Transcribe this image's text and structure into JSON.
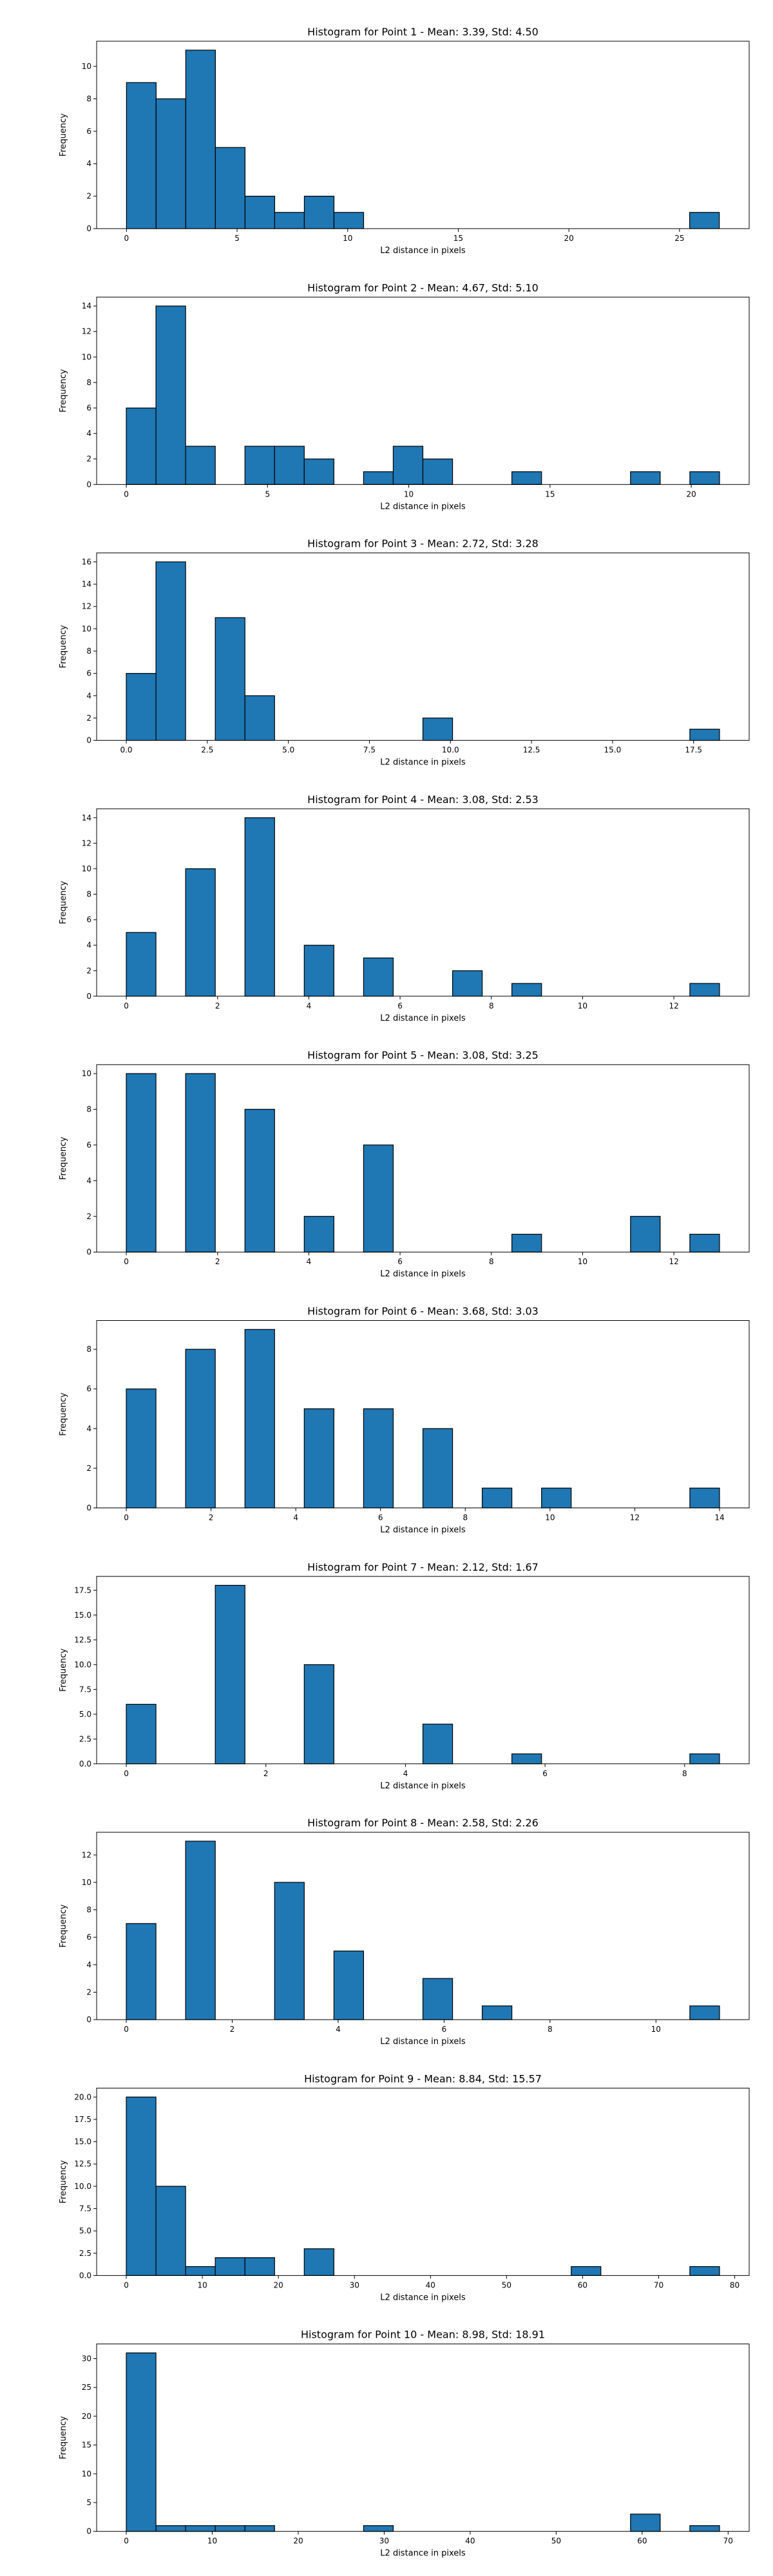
{
  "figure": {
    "background": "#ffffff",
    "bar_color": "#1f77b4",
    "edge_color": "#000000"
  },
  "chart_data": [
    {
      "type": "bar",
      "title": "Histogram for Point 1 - Mean: 3.39, Std: 4.50",
      "xlabel": "L2 distance in pixels",
      "ylabel": "Frequency",
      "xlim": [
        -1.35,
        28.15
      ],
      "ylim": [
        0,
        11.55
      ],
      "xticks": [
        0,
        5,
        10,
        15,
        20,
        25
      ],
      "yticks": [
        0,
        2,
        4,
        6,
        8,
        10
      ],
      "bins": [
        [
          0,
          1.34,
          9
        ],
        [
          1.34,
          2.68,
          8
        ],
        [
          2.68,
          4.02,
          11
        ],
        [
          4.02,
          5.36,
          5
        ],
        [
          5.36,
          6.7,
          2
        ],
        [
          6.7,
          8.04,
          1
        ],
        [
          8.04,
          9.38,
          2
        ],
        [
          9.38,
          10.72,
          1
        ],
        [
          25.46,
          26.8,
          1
        ]
      ]
    },
    {
      "type": "bar",
      "title": "Histogram for Point 2 - Mean: 4.67, Std: 5.10",
      "xlabel": "L2 distance in pixels",
      "ylabel": "Frequency",
      "xlim": [
        -1.05,
        22.05
      ],
      "ylim": [
        0,
        14.7
      ],
      "xticks": [
        0,
        5,
        10,
        15,
        20
      ],
      "yticks": [
        0,
        2,
        4,
        6,
        8,
        10,
        12,
        14
      ],
      "bins": [
        [
          0,
          1.05,
          6
        ],
        [
          1.05,
          2.1,
          14
        ],
        [
          2.1,
          3.15,
          3
        ],
        [
          4.2,
          5.25,
          3
        ],
        [
          5.25,
          6.3,
          3
        ],
        [
          6.3,
          7.35,
          2
        ],
        [
          8.4,
          9.45,
          1
        ],
        [
          9.45,
          10.5,
          3
        ],
        [
          10.5,
          11.55,
          2
        ],
        [
          13.65,
          14.7,
          1
        ],
        [
          17.85,
          18.9,
          1
        ],
        [
          19.95,
          21.0,
          1
        ]
      ]
    },
    {
      "type": "bar",
      "title": "Histogram for Point 3 - Mean: 2.72, Std: 3.28",
      "xlabel": "L2 distance in pixels",
      "ylabel": "Frequency",
      "xlim": [
        -0.915,
        19.215
      ],
      "ylim": [
        0,
        16.8
      ],
      "xticks": [
        0.0,
        2.5,
        5.0,
        7.5,
        10.0,
        12.5,
        15.0,
        17.5
      ],
      "yticks": [
        0,
        2,
        4,
        6,
        8,
        10,
        12,
        14,
        16
      ],
      "bins": [
        [
          0,
          0.915,
          6
        ],
        [
          0.915,
          1.83,
          16
        ],
        [
          2.745,
          3.66,
          11
        ],
        [
          3.66,
          4.575,
          4
        ],
        [
          9.15,
          10.065,
          2
        ],
        [
          17.385,
          18.3,
          1
        ]
      ]
    },
    {
      "type": "bar",
      "title": "Histogram for Point 4 - Mean: 3.08, Std: 2.53",
      "xlabel": "L2 distance in pixels",
      "ylabel": "Frequency",
      "xlim": [
        -0.65,
        13.65
      ],
      "ylim": [
        0,
        14.7
      ],
      "xticks": [
        0,
        2,
        4,
        6,
        8,
        10,
        12
      ],
      "yticks": [
        0,
        2,
        4,
        6,
        8,
        10,
        12,
        14
      ],
      "bins": [
        [
          0,
          0.65,
          5
        ],
        [
          1.3,
          1.95,
          10
        ],
        [
          2.6,
          3.25,
          14
        ],
        [
          3.9,
          4.55,
          4
        ],
        [
          5.2,
          5.85,
          3
        ],
        [
          7.15,
          7.8,
          2
        ],
        [
          8.45,
          9.1,
          1
        ],
        [
          12.35,
          13.0,
          1
        ]
      ]
    },
    {
      "type": "bar",
      "title": "Histogram for Point 5 - Mean: 3.08, Std: 3.25",
      "xlabel": "L2 distance in pixels",
      "ylabel": "Frequency",
      "xlim": [
        -0.65,
        13.65
      ],
      "ylim": [
        0,
        10.5
      ],
      "xticks": [
        0,
        2,
        4,
        6,
        8,
        10,
        12
      ],
      "yticks": [
        0,
        2,
        4,
        6,
        8,
        10
      ],
      "bins": [
        [
          0,
          0.65,
          10
        ],
        [
          1.3,
          1.95,
          10
        ],
        [
          2.6,
          3.25,
          8
        ],
        [
          3.9,
          4.55,
          2
        ],
        [
          5.2,
          5.85,
          6
        ],
        [
          8.45,
          9.1,
          1
        ],
        [
          11.05,
          11.7,
          2
        ],
        [
          12.35,
          13.0,
          1
        ]
      ]
    },
    {
      "type": "bar",
      "title": "Histogram for Point 6 - Mean: 3.68, Std: 3.03",
      "xlabel": "L2 distance in pixels",
      "ylabel": "Frequency",
      "xlim": [
        -0.7,
        14.7
      ],
      "ylim": [
        0,
        9.45
      ],
      "xticks": [
        0,
        2,
        4,
        6,
        8,
        10,
        12,
        14
      ],
      "yticks": [
        0,
        2,
        4,
        6,
        8
      ],
      "bins": [
        [
          0,
          0.7,
          6
        ],
        [
          1.4,
          2.1,
          8
        ],
        [
          2.8,
          3.5,
          9
        ],
        [
          4.2,
          4.9,
          5
        ],
        [
          5.6,
          6.3,
          5
        ],
        [
          7.0,
          7.7,
          4
        ],
        [
          8.4,
          9.1,
          1
        ],
        [
          9.8,
          10.5,
          1
        ],
        [
          13.3,
          14.0,
          1
        ]
      ]
    },
    {
      "type": "bar",
      "title": "Histogram for Point 7 - Mean: 2.12, Std: 1.67",
      "xlabel": "L2 distance in pixels",
      "ylabel": "Frequency",
      "xlim": [
        -0.425,
        8.925
      ],
      "ylim": [
        0,
        18.9
      ],
      "xticks": [
        0,
        2,
        4,
        6,
        8
      ],
      "yticks": [
        0.0,
        2.5,
        5.0,
        7.5,
        10.0,
        12.5,
        15.0,
        17.5
      ],
      "bins": [
        [
          0,
          0.425,
          6
        ],
        [
          1.275,
          1.7,
          18
        ],
        [
          2.55,
          2.975,
          10
        ],
        [
          4.25,
          4.675,
          4
        ],
        [
          5.525,
          5.95,
          1
        ],
        [
          8.075,
          8.5,
          1
        ]
      ]
    },
    {
      "type": "bar",
      "title": "Histogram for Point 8 - Mean: 2.58, Std: 2.26",
      "xlabel": "L2 distance in pixels",
      "ylabel": "Frequency",
      "xlim": [
        -0.56,
        11.76
      ],
      "ylim": [
        0,
        13.65
      ],
      "xticks": [
        0,
        2,
        4,
        6,
        8,
        10
      ],
      "yticks": [
        0,
        2,
        4,
        6,
        8,
        10,
        12
      ],
      "bins": [
        [
          0,
          0.56,
          7
        ],
        [
          1.12,
          1.68,
          13
        ],
        [
          2.8,
          3.36,
          10
        ],
        [
          3.92,
          4.48,
          5
        ],
        [
          5.6,
          6.16,
          3
        ],
        [
          6.72,
          7.28,
          1
        ],
        [
          10.64,
          11.2,
          1
        ]
      ]
    },
    {
      "type": "bar",
      "title": "Histogram for Point 9 - Mean: 8.84, Std: 15.57",
      "xlabel": "L2 distance in pixels",
      "ylabel": "Frequency",
      "xlim": [
        -3.9,
        81.9
      ],
      "ylim": [
        0,
        21.0
      ],
      "xticks": [
        0,
        10,
        20,
        30,
        40,
        50,
        60,
        70,
        80
      ],
      "yticks": [
        0.0,
        2.5,
        5.0,
        7.5,
        10.0,
        12.5,
        15.0,
        17.5,
        20.0
      ],
      "bins": [
        [
          0,
          3.9,
          20
        ],
        [
          3.9,
          7.8,
          10
        ],
        [
          7.8,
          11.7,
          1
        ],
        [
          11.7,
          15.6,
          2
        ],
        [
          15.6,
          19.5,
          2
        ],
        [
          23.4,
          27.3,
          3
        ],
        [
          58.5,
          62.4,
          1
        ],
        [
          74.1,
          78.0,
          1
        ]
      ]
    },
    {
      "type": "bar",
      "title": "Histogram for Point 10 - Mean: 8.98, Std: 18.91",
      "xlabel": "L2 distance in pixels",
      "ylabel": "Frequency",
      "xlim": [
        -3.45,
        72.45
      ],
      "ylim": [
        0,
        32.55
      ],
      "xticks": [
        0,
        10,
        20,
        30,
        40,
        50,
        60,
        70
      ],
      "yticks": [
        0,
        5,
        10,
        15,
        20,
        25,
        30
      ],
      "bins": [
        [
          0,
          3.45,
          31
        ],
        [
          3.45,
          6.9,
          1
        ],
        [
          6.9,
          10.35,
          1
        ],
        [
          10.35,
          13.8,
          1
        ],
        [
          13.8,
          17.25,
          1
        ],
        [
          27.6,
          31.05,
          1
        ],
        [
          58.65,
          62.1,
          3
        ],
        [
          65.55,
          69.0,
          1
        ]
      ]
    }
  ]
}
